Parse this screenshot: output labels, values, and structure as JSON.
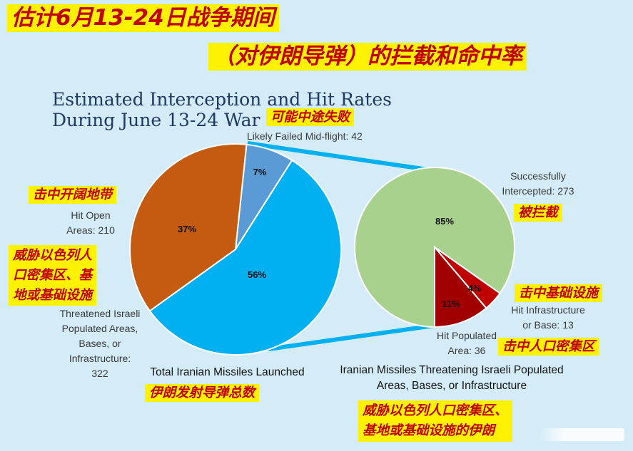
{
  "header": {
    "line1": "估计6月13-24日战争期间",
    "line2": "（对伊朗导弹）的拦截和命中率"
  },
  "chart_data": [
    {
      "type": "pie",
      "title_lines": [
        "Estimated Interception and Hit Rates",
        "During June 13-24 War"
      ],
      "caption": "Total Iranian Missiles Launched",
      "slices": [
        {
          "label": "Likely Failed Mid-flight: 42",
          "value": 42,
          "percent": "7%",
          "color": "#5b9bd5"
        },
        {
          "label": "Threatened Israeli\nPopulated Areas,\nBases, or\nInfrastructure:\n322",
          "value": 322,
          "percent": "56%",
          "color": "#00b0f0"
        },
        {
          "label": "Hit Open\nAreas: 210",
          "value": 210,
          "percent": "37%",
          "color": "#c55a11"
        }
      ]
    },
    {
      "type": "pie",
      "caption": "Iranian Missiles Threatening Israeli Populated\nAreas, Bases, or Infrastructure",
      "slices": [
        {
          "label": "Successfully\nIntercepted: 273",
          "value": 273,
          "percent": "85%",
          "color": "#a9d18e"
        },
        {
          "label": "Hit Infrastructure\nor Base: 13",
          "value": 13,
          "percent": "4%",
          "color": "#c00000"
        },
        {
          "label": "Hit Populated\nArea: 36",
          "value": 36,
          "percent": "11%",
          "color": "#a00000"
        }
      ]
    }
  ],
  "annotations": {
    "failed": "可能中途失败",
    "open": "击中开阔地带",
    "threat": "威胁以色列人\n口密集区、基\n地或基础设施",
    "total": "伊朗发射导弹总数",
    "intercepted": "被拦截",
    "infra": "击中基础设施",
    "populated": "击中人口密集区",
    "bottom": "威胁以色列人口密集区、\n基地或基础设施的伊朗"
  },
  "colors": {
    "connector": "#00b0f0",
    "highlight": "#fff200",
    "annotation_text": "#c00000",
    "title": "#203864"
  }
}
